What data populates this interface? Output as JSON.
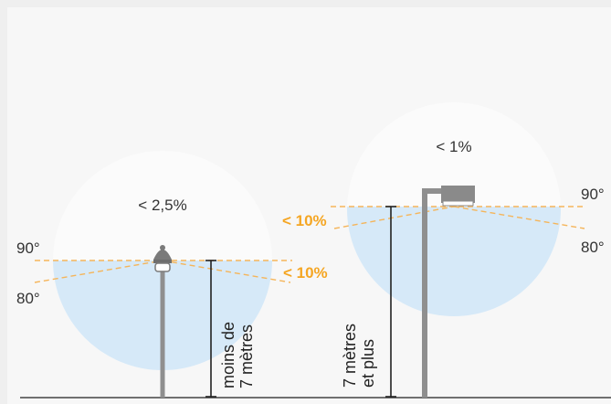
{
  "colors": {
    "background": "#efefef",
    "panel": "#f7f7f7",
    "circle_top": "#f9f9f9",
    "circle_bottom": "#d6e9f8",
    "dashed_line": "#f5b55a",
    "accent_text": "#f5a623",
    "pole": "#8f8f8f",
    "ground": "#444444"
  },
  "left_fixture": {
    "upward_light_label": "< 2,5%",
    "below_horizontal_label": "< 10%",
    "angle_90_label": "90°",
    "angle_80_label": "80°",
    "height_label_line1": "moins de",
    "height_label_line2": "7 mètres",
    "icon": "streetlamp-icon"
  },
  "right_fixture": {
    "upward_light_label": "< 1%",
    "below_horizontal_label": "< 10%",
    "angle_90_label": "90°",
    "angle_80_label": "80°",
    "height_label_line1": "7 mètres",
    "height_label_line2": "et plus",
    "icon": "floodlight-icon"
  }
}
